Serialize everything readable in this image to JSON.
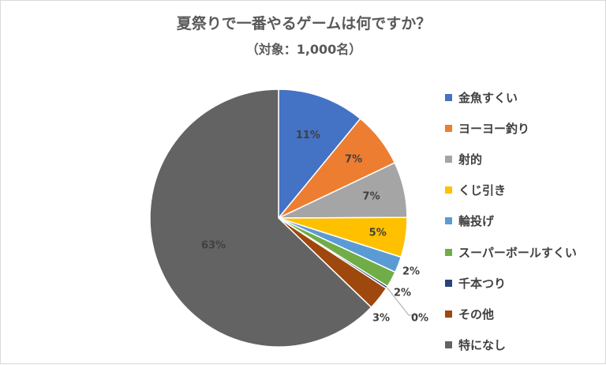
{
  "chart_data": {
    "type": "pie",
    "title": "夏祭りで一番やるゲームは何ですか？",
    "subtitle": "（対象：1,000名）",
    "legend_position": "right",
    "slices": [
      {
        "name": "金魚すくい",
        "value": 11,
        "label": "11%",
        "color": "#4472C4"
      },
      {
        "name": "ヨーヨー釣り",
        "value": 7,
        "label": "7%",
        "color": "#ED7D31"
      },
      {
        "name": "射的",
        "value": 7,
        "label": "7%",
        "color": "#A5A5A5"
      },
      {
        "name": "くじ引き",
        "value": 5,
        "label": "5%",
        "color": "#FFC000"
      },
      {
        "name": "輪投げ",
        "value": 2,
        "label": "2%",
        "color": "#5B9BD5"
      },
      {
        "name": "スーパーボールすくい",
        "value": 2,
        "label": "2%",
        "color": "#70AD47"
      },
      {
        "name": "千本つり",
        "value": 0.3,
        "label": "0%",
        "color": "#264478"
      },
      {
        "name": "その他",
        "value": 3,
        "label": "3%",
        "color": "#9E480E"
      },
      {
        "name": "特になし",
        "value": 63,
        "label": "63%",
        "color": "#636363"
      }
    ]
  }
}
